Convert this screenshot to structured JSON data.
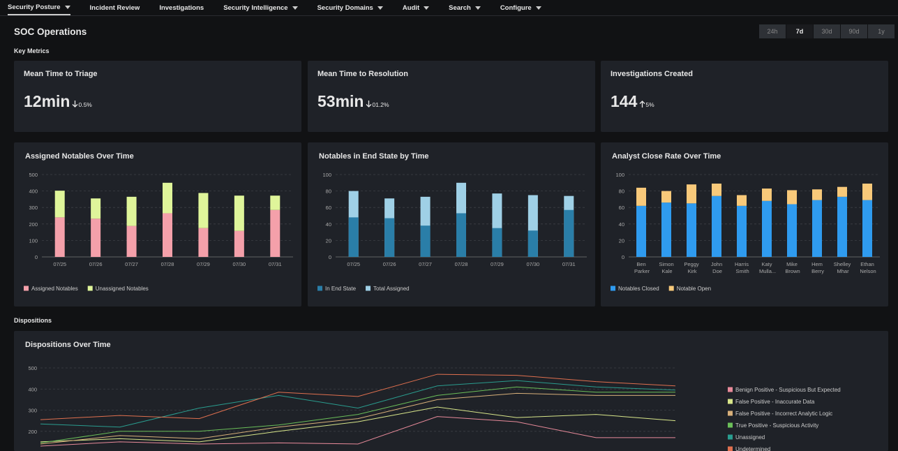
{
  "nav": [
    {
      "label": "Security Posture",
      "dropdown": true,
      "active": true
    },
    {
      "label": "Incident Review",
      "dropdown": false
    },
    {
      "label": "Investigations",
      "dropdown": false
    },
    {
      "label": "Security Intelligence",
      "dropdown": true
    },
    {
      "label": "Security Domains",
      "dropdown": true
    },
    {
      "label": "Audit",
      "dropdown": true
    },
    {
      "label": "Search",
      "dropdown": true
    },
    {
      "label": "Configure",
      "dropdown": true
    }
  ],
  "title": "SOC Operations",
  "time_ranges": [
    {
      "label": "24h"
    },
    {
      "label": "7d",
      "selected": true
    },
    {
      "label": "30d"
    },
    {
      "label": "90d"
    },
    {
      "label": "1y"
    }
  ],
  "key_metrics": {
    "label": "Key Metrics",
    "kpis": [
      {
        "title": "Mean Time to Triage",
        "value": "12min",
        "change": "0.5%",
        "direction": "down"
      },
      {
        "title": "Mean Time to Resolution",
        "value": "53min",
        "change": "01.2%",
        "direction": "down"
      },
      {
        "title": "Investigations Created",
        "value": "144",
        "change": "5%",
        "direction": "up"
      }
    ]
  },
  "charts": [
    {
      "type": "bar",
      "stacked": true,
      "title": "Assigned Notables Over Time",
      "categories": [
        "07/25",
        "07/26",
        "07/27",
        "07/28",
        "07/29",
        "07/30",
        "07/31"
      ],
      "series": [
        {
          "name": "Assigned Notables",
          "color": "#f4a0aa",
          "values": [
            240,
            232,
            188,
            265,
            175,
            158,
            285
          ]
        },
        {
          "name": "Unassigned Notables",
          "color": "#dff59a",
          "values": [
            162,
            123,
            177,
            185,
            213,
            214,
            87
          ]
        }
      ],
      "ylim": [
        0,
        500
      ],
      "yticks": [
        0,
        100,
        200,
        300,
        400,
        500
      ],
      "grid": true,
      "legend": "bottom-left"
    },
    {
      "type": "bar",
      "stacked": false,
      "title": "Notables in End State by Time",
      "categories": [
        "07/25",
        "07/26",
        "07/27",
        "07/28",
        "07/29",
        "07/30",
        "07/31"
      ],
      "series": [
        {
          "name": "In End State",
          "color": "#2a7ea8",
          "values": [
            48,
            47,
            38,
            53,
            35,
            32,
            57
          ]
        },
        {
          "name": "Total Assigned",
          "color": "#9fd0e6",
          "values": [
            80,
            71,
            73,
            90,
            77,
            75,
            74
          ]
        }
      ],
      "ylim": [
        0,
        100
      ],
      "yticks": [
        0,
        20,
        40,
        60,
        80,
        100
      ],
      "grid": true,
      "legend": "bottom-left"
    },
    {
      "type": "bar",
      "stacked": true,
      "title": "Analyst Close Rate Over Time",
      "categories": [
        "Ben Parker",
        "Simon Kale",
        "Peggy Kirk",
        "John Doe",
        "Harris Smith",
        "Katy Mulla...",
        "Mike Brown",
        "Hem Berry",
        "Shelley Mhar",
        "Ethan Nelson"
      ],
      "series": [
        {
          "name": "Notables Closed",
          "color": "#2f9bef",
          "values": [
            62,
            66,
            65,
            74,
            62,
            68,
            64,
            69,
            73,
            69
          ]
        },
        {
          "name": "Notable Open",
          "color": "#f8c97a",
          "values": [
            22,
            14,
            23,
            15,
            13,
            15,
            17,
            13,
            12,
            20
          ]
        }
      ],
      "ylim": [
        0,
        100
      ],
      "yticks": [
        0,
        20,
        40,
        60,
        80,
        100
      ],
      "grid": true,
      "legend": "bottom-left"
    }
  ],
  "dispositions": {
    "label": "Dispositions",
    "chart": {
      "type": "line",
      "title": "Dispositions Over Time",
      "categories": [
        null,
        null,
        null,
        null,
        null,
        null,
        null,
        null,
        null
      ],
      "series": [
        {
          "name": "Benign Positive - Suspicious But Expected",
          "color": "#e88a9a",
          "values": [
            130,
            150,
            140,
            145,
            140,
            270,
            245,
            170,
            170
          ]
        },
        {
          "name": "False Positive - Inaccurate Data",
          "color": "#d8e68a",
          "values": [
            150,
            165,
            150,
            200,
            245,
            315,
            265,
            280,
            250
          ]
        },
        {
          "name": "False Positive - Incorrect Analytic Logic",
          "color": "#d8b07a",
          "values": [
            140,
            180,
            165,
            220,
            260,
            350,
            380,
            370,
            370
          ]
        },
        {
          "name": "True Positive - Suspicious Activity",
          "color": "#6bbf59",
          "values": [
            145,
            200,
            200,
            230,
            280,
            370,
            410,
            385,
            385
          ]
        },
        {
          "name": "Unassigned",
          "color": "#2a9d8f",
          "values": [
            235,
            220,
            310,
            370,
            310,
            415,
            440,
            410,
            395
          ]
        },
        {
          "name": "Undetermined",
          "color": "#e0704f",
          "values": [
            255,
            275,
            260,
            385,
            365,
            470,
            465,
            435,
            415
          ]
        }
      ],
      "ylim": [
        120,
        500
      ],
      "yticks": [
        200,
        300,
        400,
        500
      ],
      "grid": true,
      "legend": "right"
    }
  }
}
